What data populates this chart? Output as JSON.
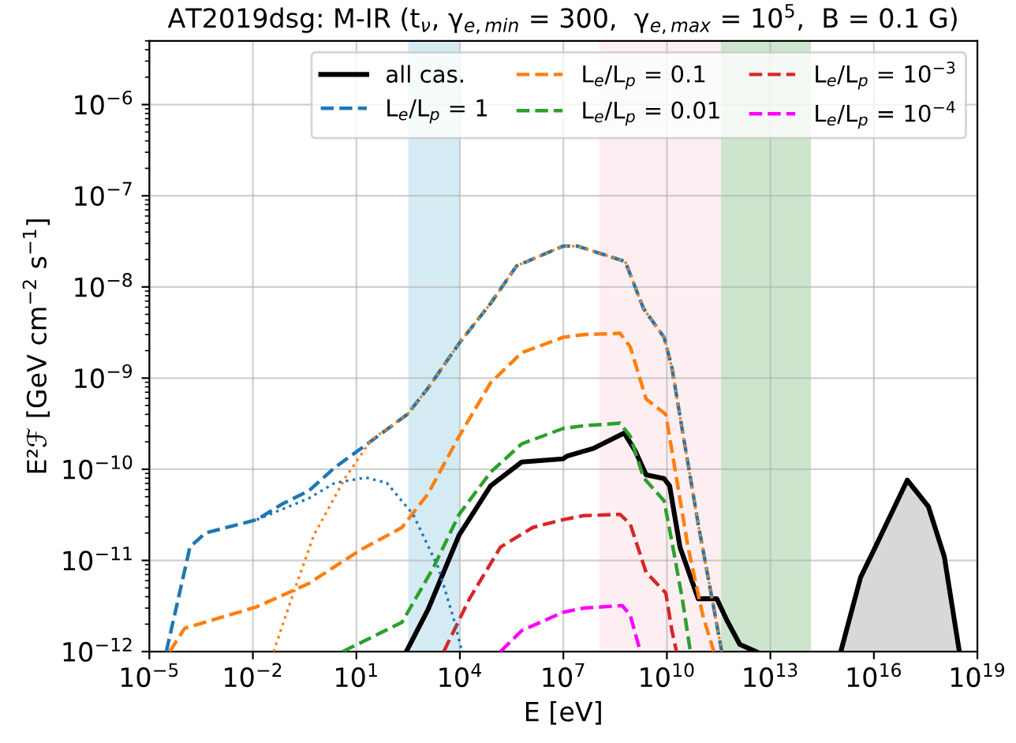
{
  "chart_data": {
    "type": "line",
    "title": "AT2019dsg: M-IR (t$_{ν}$, γ$_{e,min}$ = 300,  γ$_{e,max}$ = 10$^{5}$,  B = 0.1 G)",
    "xlabel": "E [eV]",
    "ylabel": "E²ℱ [GeV cm$^{−2}$ s$^{−1}$]",
    "log": "xy",
    "grid": true,
    "legend": "top right",
    "xlim": [
      1e-05,
      1e+19
    ],
    "ylim": [
      1e-12,
      5e-06
    ],
    "xticks": [
      {
        "value": 1e-05,
        "label": "10$^{−5}$"
      },
      {
        "value": 0.01,
        "label": "10$^{−2}$"
      },
      {
        "value": 10,
        "label": "10$^{1}$"
      },
      {
        "value": 10000.0,
        "label": "10$^{4}$"
      },
      {
        "value": 10000000.0,
        "label": "10$^{7}$"
      },
      {
        "value": 10000000000.0,
        "label": "10$^{10}$"
      },
      {
        "value": 10000000000000.0,
        "label": "10$^{13}$"
      },
      {
        "value": 1e+16,
        "label": "10$^{16}$"
      },
      {
        "value": 1e+19,
        "label": "10$^{19}$"
      }
    ],
    "yticks": [
      {
        "value": 1e-12,
        "label": "10$^{−12}$"
      },
      {
        "value": 1e-11,
        "label": "10$^{−11}$"
      },
      {
        "value": 1e-10,
        "label": "10$^{−10}$"
      },
      {
        "value": 1e-09,
        "label": "10$^{−9}$"
      },
      {
        "value": 1e-08,
        "label": "10$^{−8}$"
      },
      {
        "value": 1e-07,
        "label": "10$^{−7}$"
      },
      {
        "value": 1e-06,
        "label": "10$^{−6}$"
      }
    ],
    "bands": [
      {
        "axis": "x",
        "from": 320.0,
        "to": 10000.0,
        "color": "#d5ebf4"
      },
      {
        "axis": "x",
        "from": 110000000.0,
        "to": 1100000000000.0,
        "color": "#fdeef1"
      },
      {
        "axis": "x",
        "from": 370000000000.0,
        "to": 150000000000000.0,
        "color": "#cde5cc"
      }
    ],
    "series": [
      {
        "type": "area",
        "color": "#d8d8d8",
        "x": [
          1100000000000000.0,
          4100000000000000.0,
          1.1e+16,
          9.3e+16,
          3.8e+17,
          1.1e+18,
          3e+18
        ],
        "values": [
          1e-12,
          6.5e-12,
          1.4e-11,
          7.6e-11,
          3.9e-11,
          1.1e-11,
          1e-12
        ]
      },
      {
        "name": "all cas.",
        "color": "#000000",
        "line_style": "solid",
        "x": [
          280,
          1200,
          9500,
          78000.0,
          620000.0,
          9800000.0,
          13000000.0,
          76000000.0,
          580000000.0,
          1200000000.0,
          2500000000.0,
          8300000000.0,
          12000000000.0,
          24000000000.0,
          81000000000.0,
          280000000000.0,
          550000000000.0,
          1300000000000.0,
          3800000000000.0
        ],
        "values": [
          1e-12,
          2.9e-12,
          1.9e-11,
          6.6e-11,
          1.2e-10,
          1.3e-10,
          1.4e-10,
          1.7e-10,
          2.5e-10,
          1.6e-10,
          8.7e-11,
          7.9e-11,
          6.6e-11,
          1.4e-11,
          3.8e-12,
          3.8e-12,
          2.2e-12,
          1.2e-12,
          1e-12
        ]
      },
      {
        "name": "L$_{e}$/L$_{p}$ = 1",
        "color": "#1f77b4",
        "line_style": "dashed",
        "x": [
          3.1e-05,
          0.00015,
          0.00042,
          0.013,
          0.074,
          0.42,
          2.4,
          14,
          300,
          1200,
          9500,
          78000.0,
          440000.0,
          9800000.0,
          26000000.0,
          620000000.0,
          2100000000.0,
          8300000000.0,
          14000000000.0,
          28000000000.0,
          81000000000.0,
          190000000000.0,
          390000000000.0
        ],
        "values": [
          1e-12,
          1.4e-11,
          2e-11,
          2.8e-11,
          4.2e-11,
          5.8e-11,
          1.05e-10,
          1.7e-10,
          4e-10,
          7.8e-10,
          2.4e-09,
          6.6e-09,
          1.7e-08,
          2.8e-08,
          2.8e-08,
          1.9e-08,
          5.8e-09,
          2.8e-09,
          1.3e-09,
          2.7e-10,
          2.5e-11,
          4.4e-12,
          1e-12
        ]
      },
      {
        "name": "L$_{e}$/L$_{p}$ = 0.1",
        "color": "#ff7f0e",
        "line_style": "dashed",
        "x": [
          3.9e-05,
          0.000105,
          0.013,
          0.42,
          13,
          210,
          1200,
          9500,
          78000.0,
          620000.0,
          9800000.0,
          38000000.0,
          440000000.0,
          870000000.0,
          2500000000.0,
          9300000000.0,
          14000000000.0,
          41000000000.0,
          110000000000.0,
          230000000000.0
        ],
        "values": [
          1e-12,
          1.8e-12,
          3.1e-12,
          5.6e-12,
          1.3e-11,
          2.3e-11,
          5.4e-11,
          2.3e-10,
          8.9e-10,
          1.9e-09,
          2.8e-09,
          3e-09,
          3.1e-09,
          2.2e-09,
          5.9e-10,
          4e-10,
          1.6e-10,
          1.4e-11,
          2.5e-12,
          1e-12
        ]
      },
      {
        "name": "L$_{e}$/L$_{p}$ = 0.01",
        "color": "#2ca02c",
        "line_style": "dashed",
        "x": [
          4.0,
          210,
          1700,
          9500,
          78000.0,
          620000.0,
          9800000.0,
          38000000.0,
          440000000.0,
          870000000.0,
          2100000000.0,
          8300000000.0,
          14000000000.0,
          28000000000.0,
          48000000000.0
        ],
        "values": [
          1e-12,
          2.1e-12,
          8.3e-12,
          3.2e-11,
          9.3e-11,
          1.9e-10,
          2.8e-10,
          3e-10,
          3.2e-10,
          2.3e-10,
          8.1e-11,
          4.5e-11,
          1.6e-11,
          3.8e-12,
          1e-12
        ]
      },
      {
        "name": "L$_{e}$/L$_{p}$ = 10$^{−3}$",
        "color": "#d62728",
        "line_style": "dashed",
        "x": [
          3400,
          19000.0,
          150000.0,
          1300000.0,
          9800000.0,
          38000000.0,
          440000000.0,
          870000000.0,
          2500000000.0,
          9300000000.0,
          14000000000.0,
          19000000000.0
        ],
        "values": [
          1e-12,
          3.8e-12,
          1.4e-11,
          2.3e-11,
          2.8e-11,
          3.1e-11,
          3.2e-11,
          2.5e-11,
          7.4e-12,
          4.4e-12,
          1.7e-12,
          1e-12
        ]
      },
      {
        "name": "L$_{e}$/L$_{p}$ = 10$^{−4}$",
        "color": "#ff00ff",
        "line_style": "dashed",
        "x": [
          150000.0,
          620000.0,
          9800000.0,
          38000000.0,
          510000000.0,
          870000000.0,
          1700000000.0
        ],
        "values": [
          1e-12,
          1.7e-12,
          2.7e-12,
          3e-12,
          3.2e-12,
          2.5e-12,
          1e-12
        ]
      },
      {
        "color": "#1f77b4",
        "line_style": "dotted",
        "x": [
          0.013,
          0.42,
          2.4,
          19,
          76,
          440,
          2400,
          6800,
          11500.0
        ],
        "values": [
          2.8e-11,
          4.8e-11,
          7.1e-11,
          8.1e-11,
          7.1e-11,
          3.2e-11,
          8.3e-12,
          2.2e-12,
          1e-12
        ]
      },
      {
        "color": "#ff7f0e",
        "line_style": "dotted",
        "x": [
          0.04,
          0.15,
          0.59,
          4.8,
          27,
          300,
          1200,
          9500,
          78000.0,
          440000.0,
          9800000.0,
          26000000.0,
          620000000.0,
          2100000000.0,
          8300000000.0,
          14000000000.0,
          28000000000.0,
          81000000000.0,
          190000000000.0,
          390000000000.0
        ],
        "values": [
          1e-12,
          4.4e-12,
          1.9e-11,
          8.1e-11,
          2.1e-10,
          4e-10,
          7.8e-10,
          2.4e-09,
          6.6e-09,
          1.7e-08,
          2.8e-08,
          2.8e-08,
          1.9e-08,
          5.8e-09,
          2.8e-09,
          1.3e-09,
          2.7e-10,
          2.5e-11,
          4.4e-12,
          1e-12
        ]
      }
    ]
  }
}
